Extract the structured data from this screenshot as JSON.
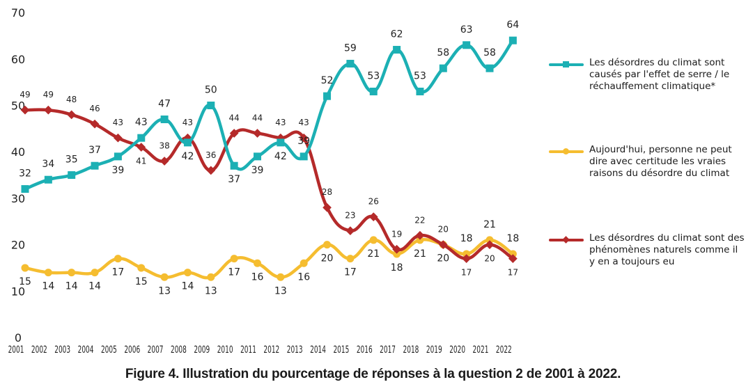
{
  "chart_data": {
    "type": "line",
    "title": "",
    "caption": "Figure 4. Illustration du pourcentage de réponses à la question 2 de 2001 à 2022.",
    "xlabel": "",
    "ylabel": "",
    "x": [
      "2001",
      "2002",
      "2003",
      "2004",
      "2005",
      "2006",
      "2007",
      "2008",
      "2009",
      "2010",
      "2011",
      "2012",
      "2013",
      "2014",
      "2015",
      "2016",
      "2017",
      "2018",
      "2019",
      "2020",
      "2021",
      "2022"
    ],
    "y_ticks": [
      "0",
      "10",
      "20",
      "30",
      "40",
      "50",
      "60",
      "70"
    ],
    "ylim": [
      0,
      70
    ],
    "grid": false,
    "legend_position": "right",
    "series": [
      {
        "name": "Les désordres du climat sont causés par l'effet de serre / le réchauffement climatique*",
        "color": "#1cb0b4",
        "marker": "square",
        "values": [
          32,
          34,
          35,
          37,
          39,
          43,
          47,
          42,
          50,
          37,
          39,
          42,
          39,
          52,
          59,
          53,
          62,
          53,
          58,
          63,
          58,
          64
        ]
      },
      {
        "name": "Aujourd'hui, personne ne peut dire avec certitude les vraies raisons du désordre du climat",
        "color": "#f5bd30",
        "marker": "circle",
        "values": [
          15,
          14,
          14,
          14,
          17,
          15,
          13,
          14,
          13,
          17,
          16,
          13,
          16,
          20,
          17,
          21,
          18,
          21,
          20,
          18,
          21,
          18
        ]
      },
      {
        "name": "Les désordres du climat sont des phénomènes naturels comme il y en a toujours eu",
        "color": "#b52a2a",
        "marker": "diamond",
        "values": [
          49,
          49,
          48,
          46,
          43,
          41,
          38,
          43,
          36,
          44,
          44,
          43,
          43,
          28,
          23,
          26,
          19,
          22,
          20,
          17,
          20,
          17
        ]
      }
    ]
  }
}
